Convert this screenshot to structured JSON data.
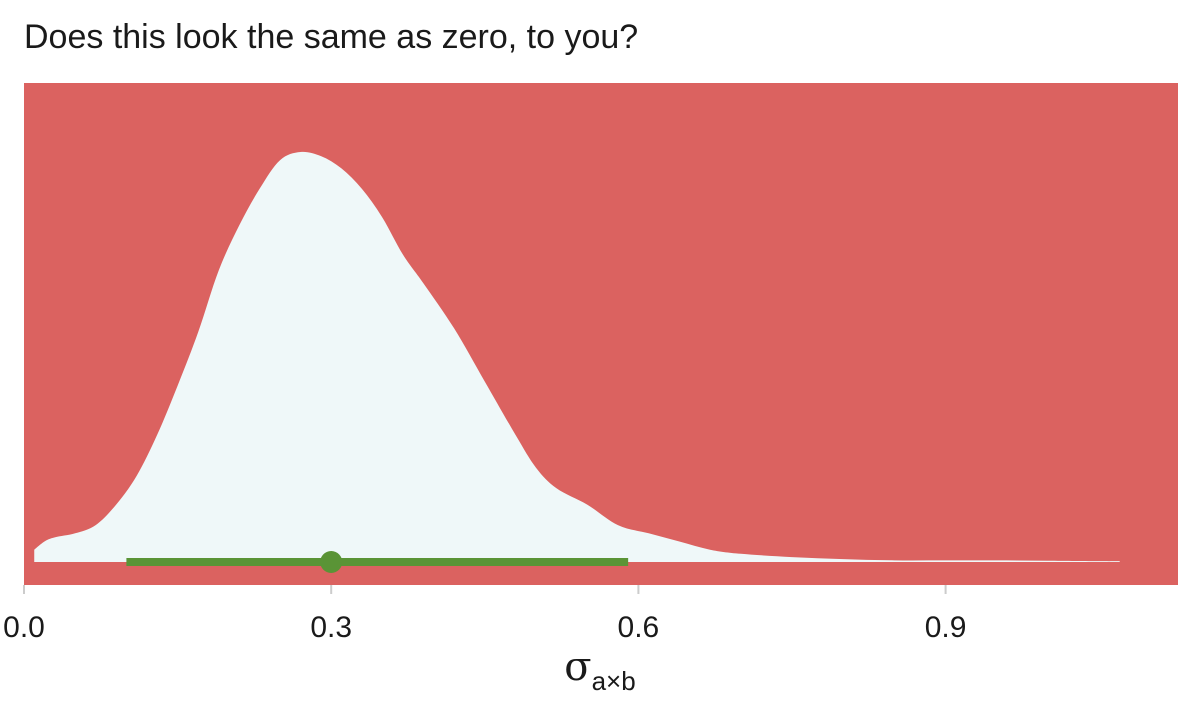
{
  "chart_data": {
    "type": "area",
    "title": "Does this look the same as zero, to you?",
    "xlabel": {
      "symbol": "σ",
      "subscript": "a×b"
    },
    "ylabel": "",
    "xlim": [
      0.0,
      1.13
    ],
    "xticks": [
      {
        "value": 0.0,
        "label": "0.0"
      },
      {
        "value": 0.3,
        "label": "0.3"
      },
      {
        "value": 0.6,
        "label": "0.6"
      },
      {
        "value": 0.9,
        "label": "0.9"
      }
    ],
    "grid": false,
    "density": {
      "x": [
        0.01,
        0.02,
        0.03,
        0.05,
        0.07,
        0.09,
        0.11,
        0.13,
        0.15,
        0.17,
        0.19,
        0.21,
        0.23,
        0.25,
        0.27,
        0.29,
        0.31,
        0.33,
        0.35,
        0.37,
        0.39,
        0.42,
        0.45,
        0.48,
        0.5,
        0.52,
        0.55,
        0.58,
        0.61,
        0.64,
        0.67,
        0.7,
        0.75,
        0.8,
        0.85,
        0.9,
        0.95,
        1.0,
        1.05,
        1.07
      ],
      "y": [
        0.03,
        0.05,
        0.06,
        0.07,
        0.09,
        0.14,
        0.21,
        0.31,
        0.43,
        0.56,
        0.71,
        0.82,
        0.91,
        0.98,
        1.0,
        0.99,
        0.96,
        0.91,
        0.84,
        0.75,
        0.68,
        0.57,
        0.44,
        0.31,
        0.23,
        0.18,
        0.14,
        0.09,
        0.07,
        0.05,
        0.03,
        0.02,
        0.012,
        0.007,
        0.004,
        0.004,
        0.004,
        0.003,
        0.002,
        0.002
      ]
    },
    "point_estimate": 0.3,
    "interval": [
      0.1,
      0.59
    ],
    "colors": {
      "panel_background": "#db6260",
      "density_fill": "#eff8f9",
      "interval": "#5a9436",
      "text": "#1a1a1a"
    }
  }
}
